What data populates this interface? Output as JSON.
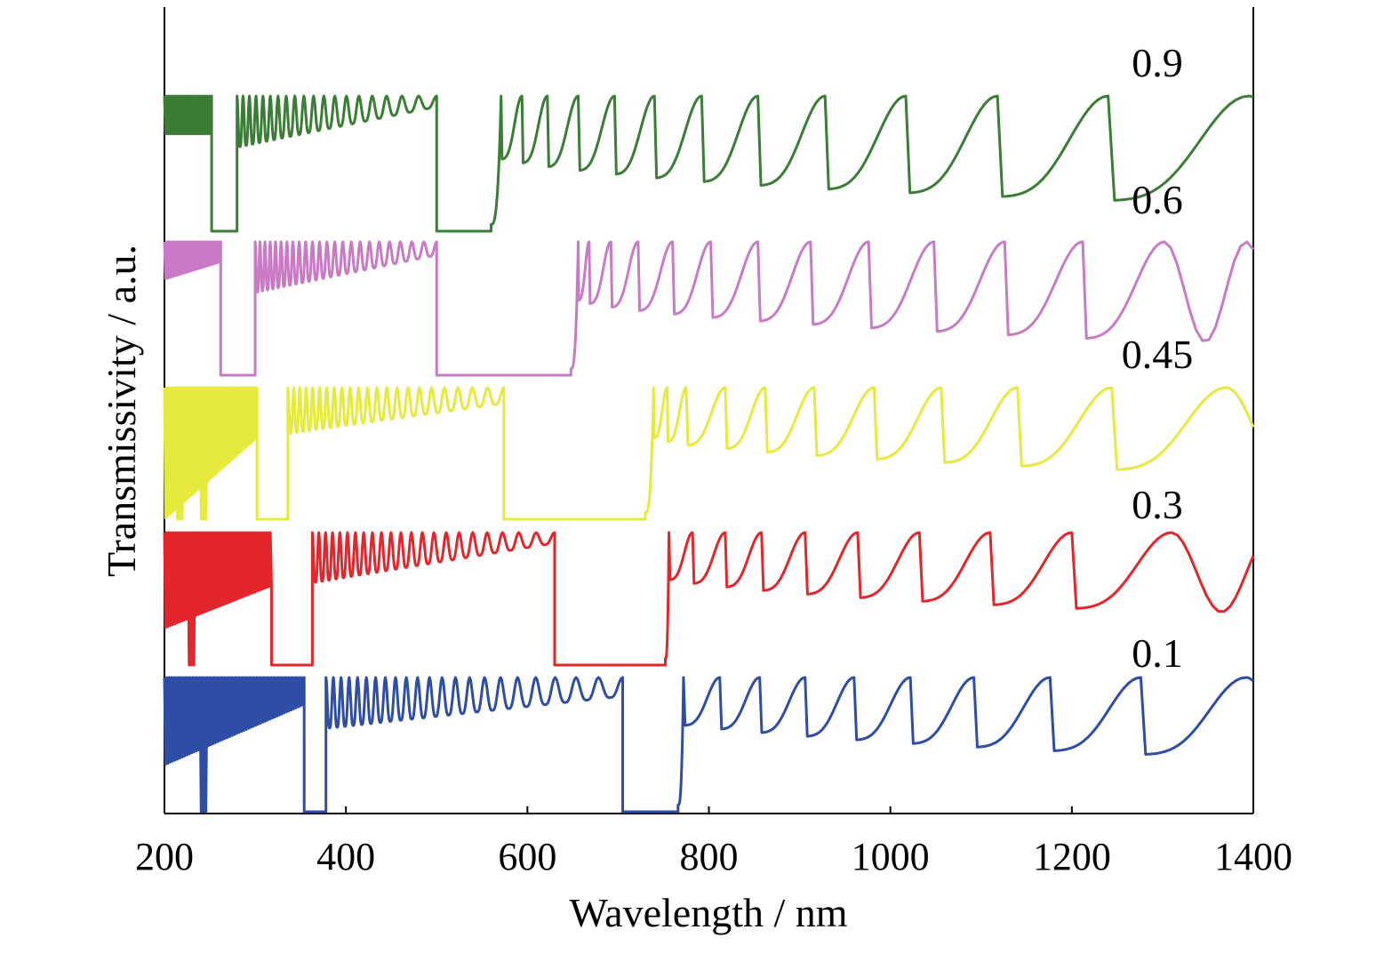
{
  "chart_data": {
    "type": "line",
    "xlabel": "Wavelength / nm",
    "ylabel": "Transmissivity / a.u.",
    "xlim": [
      200,
      1400
    ],
    "xticks": [
      "200",
      "400",
      "600",
      "800",
      "1000",
      "1200",
      "1400"
    ],
    "grid": false,
    "legend": "none",
    "series": [
      {
        "name": "0.9",
        "color": "#3a7d34",
        "segments": [
          {
            "type": "dense",
            "x": [
              200,
              252
            ],
            "env_top": [
              1.0,
              1.0
            ],
            "env_bot": [
              0.72,
              0.72
            ]
          },
          {
            "type": "gap",
            "x": [
              252,
              280
            ]
          },
          {
            "type": "fringes",
            "x": [
              280,
              500
            ],
            "count": 19,
            "env_top": [
              1.0,
              1.0
            ],
            "env_bot": [
              0.62,
              0.92
            ]
          },
          {
            "type": "gap",
            "x": [
              500,
              560
            ]
          },
          {
            "type": "smooth",
            "x": [
              560,
              1400
            ],
            "peaks": [
              571,
              594,
              622,
              656,
              696,
              740,
              792,
              854,
              928,
              1017,
              1118,
              1240,
              1395
            ],
            "min_level": 0.8
          }
        ]
      },
      {
        "name": "0.6",
        "color": "#c87ac6",
        "segments": [
          {
            "type": "dense",
            "x": [
              200,
              262
            ],
            "env_top": [
              1.0,
              1.0
            ],
            "env_bot": [
              0.72,
              0.85
            ]
          },
          {
            "type": "gap",
            "x": [
              262,
              300
            ]
          },
          {
            "type": "fringes",
            "x": [
              300,
              500
            ],
            "count": 23,
            "env_top": [
              1.0,
              1.0
            ],
            "env_bot": [
              0.62,
              0.9
            ]
          },
          {
            "type": "gap",
            "x": [
              500,
              648
            ]
          },
          {
            "type": "smooth",
            "x": [
              648,
              1400
            ],
            "peaks": [
              656,
              668,
              692,
              722,
              760,
              802,
              854,
              912,
              976,
              1048,
              1126,
              1212,
              1302
            ],
            "min_level": 0.75
          }
        ]
      },
      {
        "name": "0.45",
        "color": "#e6ea3c",
        "segments": [
          {
            "type": "dense",
            "x": [
              200,
              302
            ],
            "env_top": [
              1.0,
              1.0
            ],
            "env_bot": [
              0.0,
              0.62
            ],
            "dip_at": [
              216,
              244
            ]
          },
          {
            "type": "gap",
            "x": [
              302,
              336
            ]
          },
          {
            "type": "fringes",
            "x": [
              336,
              574
            ],
            "count": 22,
            "env_top": [
              1.0,
              1.0
            ],
            "env_bot": [
              0.65,
              0.88
            ]
          },
          {
            "type": "gap",
            "x": [
              574,
              730
            ]
          },
          {
            "type": "smooth",
            "x": [
              730,
              1400
            ],
            "peaks": [
              739,
              754,
              775,
              818,
              862,
              916,
              982,
              1056,
              1140,
              1244,
              1370
            ],
            "min_level": 0.65
          }
        ]
      },
      {
        "name": "0.3",
        "color": "#e3262b",
        "segments": [
          {
            "type": "dense",
            "x": [
              200,
              318
            ],
            "env_top": [
              1.0,
              1.0
            ],
            "env_bot": [
              0.28,
              0.6
            ],
            "dip_at": [
              230
            ]
          },
          {
            "type": "gap",
            "x": [
              318,
              363
            ]
          },
          {
            "type": "fringes",
            "x": [
              363,
              630
            ],
            "count": 22,
            "env_top": [
              1.0,
              1.0
            ],
            "env_bot": [
              0.62,
              0.92
            ]
          },
          {
            "type": "gap",
            "x": [
              630,
              752
            ]
          },
          {
            "type": "smooth",
            "x": [
              752,
              1400
            ],
            "peaks": [
              756,
              782,
              818,
              858,
              906,
              964,
              1032,
              1110,
              1200,
              1310
            ],
            "min_level": 0.6
          }
        ]
      },
      {
        "name": "0.1",
        "color": "#2e4da5",
        "segments": [
          {
            "type": "dense",
            "x": [
              200,
              354
            ],
            "env_top": [
              1.0,
              1.0
            ],
            "env_bot": [
              0.35,
              0.8
            ],
            "dip_at": [
              242
            ]
          },
          {
            "type": "gap",
            "x": [
              354,
              378
            ]
          },
          {
            "type": "fringes",
            "x": [
              378,
              705
            ],
            "count": 22,
            "env_top": [
              1.0,
              1.0
            ],
            "env_bot": [
              0.62,
              0.86
            ]
          },
          {
            "type": "gap",
            "x": [
              705,
              766
            ]
          },
          {
            "type": "smooth",
            "x": [
              766,
              1400
            ],
            "peaks": [
              772,
              812,
              856,
              906,
              960,
              1022,
              1092,
              1176,
              1276,
              1392
            ],
            "min_level": 0.6
          }
        ]
      }
    ]
  }
}
